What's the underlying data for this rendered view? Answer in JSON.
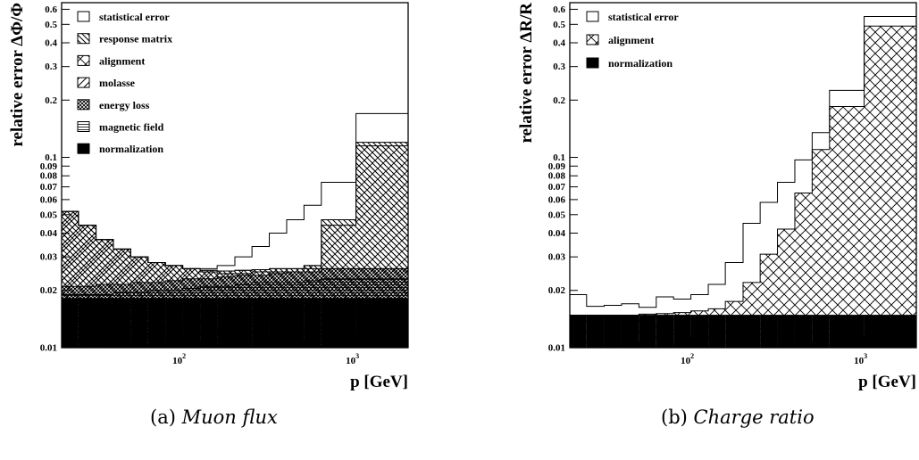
{
  "figure": {
    "captions": [
      {
        "label": "(a)",
        "text": "Muon flux"
      },
      {
        "label": "(b)",
        "text": "Charge ratio"
      }
    ]
  },
  "chart_data": [
    {
      "type": "area",
      "title": "",
      "xlabel": "p [GeV]",
      "ylabel": "relative error ΔΦ/Φ",
      "xscale": "log",
      "yscale": "log",
      "xlim": [
        20,
        2000
      ],
      "ylim": [
        0.01,
        0.65
      ],
      "xticks": [
        {
          "v": 100,
          "base": "10",
          "exp": "2"
        },
        {
          "v": 1000,
          "base": "10",
          "exp": "3"
        }
      ],
      "yticks": [
        "0.01",
        "0.02",
        "0.03",
        "0.04",
        "0.05",
        "0.06",
        "0.07",
        "0.08",
        "0.09",
        "0.1",
        "0.2",
        "0.3",
        "0.4",
        "0.5",
        "0.6"
      ],
      "legend_position": "top-left",
      "bin_edges": [
        20,
        25,
        31.6,
        39.8,
        50.1,
        63.1,
        79.4,
        100,
        126,
        158,
        200,
        251,
        316,
        398,
        501,
        631,
        1000,
        2000
      ],
      "series": [
        {
          "name": "statistical error",
          "pattern": "empty",
          "values": [
            0.052,
            0.044,
            0.037,
            0.033,
            0.03,
            0.028,
            0.027,
            0.026,
            0.026,
            0.027,
            0.03,
            0.034,
            0.04,
            0.047,
            0.056,
            0.074,
            0.17
          ]
        },
        {
          "name": "response matrix",
          "pattern": "hatch-backslash",
          "values": [
            0.052,
            0.044,
            0.037,
            0.033,
            0.03,
            0.028,
            0.027,
            0.026,
            0.0255,
            0.0253,
            0.0255,
            0.0257,
            0.026,
            0.026,
            0.027,
            0.047,
            0.12
          ]
        },
        {
          "name": "alignment",
          "pattern": "crosshatch",
          "values": [
            0.052,
            0.044,
            0.037,
            0.033,
            0.03,
            0.028,
            0.027,
            0.026,
            0.0255,
            0.0253,
            0.0255,
            0.0257,
            0.026,
            0.026,
            0.027,
            0.044,
            0.115
          ]
        },
        {
          "name": "molasse",
          "pattern": "hatch-slash",
          "values": [
            0.052,
            0.044,
            0.037,
            0.033,
            0.03,
            0.028,
            0.027,
            0.026,
            0.025,
            0.0245,
            0.0245,
            0.025,
            0.025,
            0.025,
            0.026,
            0.026,
            0.026
          ]
        },
        {
          "name": "energy loss",
          "pattern": "dense-crosshatch",
          "values": [
            0.021,
            0.021,
            0.0215,
            0.0215,
            0.022,
            0.022,
            0.0225,
            0.023,
            0.023,
            0.0235,
            0.024,
            0.024,
            0.0245,
            0.025,
            0.025,
            0.026,
            0.026
          ]
        },
        {
          "name": "magnetic field",
          "pattern": "hlines",
          "values": [
            0.019,
            0.019,
            0.019,
            0.0195,
            0.0195,
            0.02,
            0.02,
            0.0205,
            0.021,
            0.021,
            0.0215,
            0.022,
            0.022,
            0.022,
            0.0225,
            0.023,
            0.023
          ]
        },
        {
          "name": "normalization",
          "pattern": "solid",
          "values": [
            0.018,
            0.018,
            0.018,
            0.018,
            0.018,
            0.018,
            0.018,
            0.018,
            0.018,
            0.018,
            0.018,
            0.018,
            0.018,
            0.018,
            0.018,
            0.018,
            0.018
          ]
        }
      ]
    },
    {
      "type": "area",
      "title": "",
      "xlabel": "p [GeV]",
      "ylabel": "relative error ΔR/R",
      "xscale": "log",
      "yscale": "log",
      "xlim": [
        20,
        2000
      ],
      "ylim": [
        0.01,
        0.65
      ],
      "xticks": [
        {
          "v": 100,
          "base": "10",
          "exp": "2"
        },
        {
          "v": 1000,
          "base": "10",
          "exp": "3"
        }
      ],
      "yticks": [
        "0.01",
        "0.02",
        "0.03",
        "0.04",
        "0.05",
        "0.06",
        "0.07",
        "0.08",
        "0.09",
        "0.1",
        "0.2",
        "0.3",
        "0.4",
        "0.5",
        "0.6"
      ],
      "legend_position": "top-left",
      "bin_edges": [
        20,
        25,
        31.6,
        39.8,
        50.1,
        63.1,
        79.4,
        100,
        126,
        158,
        200,
        251,
        316,
        398,
        501,
        631,
        1000,
        2000
      ],
      "series": [
        {
          "name": "statistical error",
          "pattern": "empty",
          "values": [
            0.019,
            0.0165,
            0.0167,
            0.017,
            0.0163,
            0.0185,
            0.018,
            0.019,
            0.0215,
            0.028,
            0.045,
            0.058,
            0.074,
            0.097,
            0.135,
            0.225,
            0.55
          ]
        },
        {
          "name": "alignment",
          "pattern": "crosshatch",
          "values": [
            0.0148,
            0.0148,
            0.0148,
            0.0148,
            0.015,
            0.0151,
            0.0153,
            0.0156,
            0.016,
            0.0175,
            0.022,
            0.031,
            0.042,
            0.065,
            0.11,
            0.185,
            0.49
          ]
        },
        {
          "name": "normalization",
          "pattern": "solid",
          "values": [
            0.0148,
            0.0148,
            0.0148,
            0.0148,
            0.0148,
            0.0148,
            0.0148,
            0.0148,
            0.0148,
            0.0148,
            0.0148,
            0.0148,
            0.0148,
            0.0148,
            0.0148,
            0.0148,
            0.0148
          ]
        }
      ]
    }
  ]
}
